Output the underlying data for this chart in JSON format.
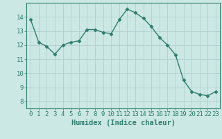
{
  "x": [
    0,
    1,
    2,
    3,
    4,
    5,
    6,
    7,
    8,
    9,
    10,
    11,
    12,
    13,
    14,
    15,
    16,
    17,
    18,
    19,
    20,
    21,
    22,
    23
  ],
  "y": [
    13.8,
    12.2,
    11.9,
    11.35,
    12.0,
    12.2,
    12.3,
    13.1,
    13.1,
    12.9,
    12.8,
    13.8,
    14.55,
    14.3,
    13.9,
    13.3,
    12.55,
    12.0,
    11.3,
    9.5,
    8.7,
    8.5,
    8.4,
    8.7
  ],
  "line_color": "#2e7d6e",
  "marker": "D",
  "marker_size": 2.5,
  "bg_color": "#cce8e4",
  "grid_color": "#aacccc",
  "xlabel": "Humidex (Indice chaleur)",
  "ylim": [
    7.5,
    15.0
  ],
  "xlim": [
    -0.5,
    23.5
  ],
  "yticks": [
    8,
    9,
    10,
    11,
    12,
    13,
    14
  ],
  "xticks": [
    0,
    1,
    2,
    3,
    4,
    5,
    6,
    7,
    8,
    9,
    10,
    11,
    12,
    13,
    14,
    15,
    16,
    17,
    18,
    19,
    20,
    21,
    22,
    23
  ],
  "tick_color": "#2e7d6e",
  "label_fontsize": 6.5,
  "axis_label_fontsize": 7.5
}
